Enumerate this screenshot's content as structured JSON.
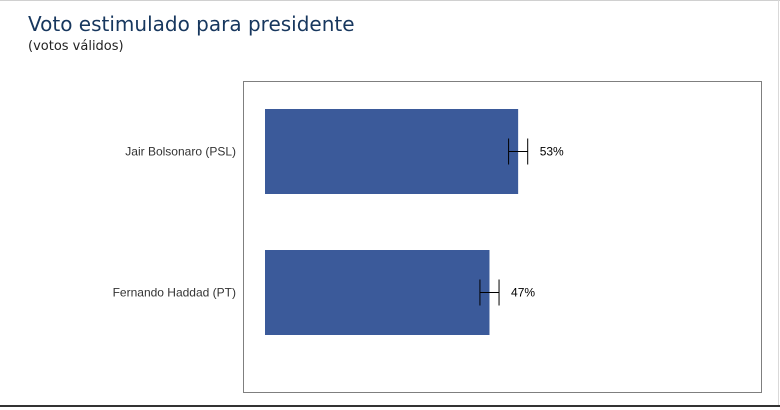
{
  "header": {
    "title": "Voto estimulado para presidente",
    "subtitle": "(votos válidos)"
  },
  "chart_data": {
    "type": "bar",
    "orientation": "horizontal",
    "title": "Voto estimulado para presidente",
    "subtitle": "(votos válidos)",
    "categories": [
      "Jair Bolsonaro (PSL)",
      "Fernando Haddad (PT)"
    ],
    "values": [
      53,
      47
    ],
    "value_labels": [
      "53%",
      "47%"
    ],
    "error_bars": {
      "present": true,
      "margin": 2
    },
    "xlim": [
      0,
      76
    ],
    "grid": false,
    "legend": "none",
    "bar_color": "#3b5a9a",
    "plot_border_color": "#7f7f7f"
  }
}
